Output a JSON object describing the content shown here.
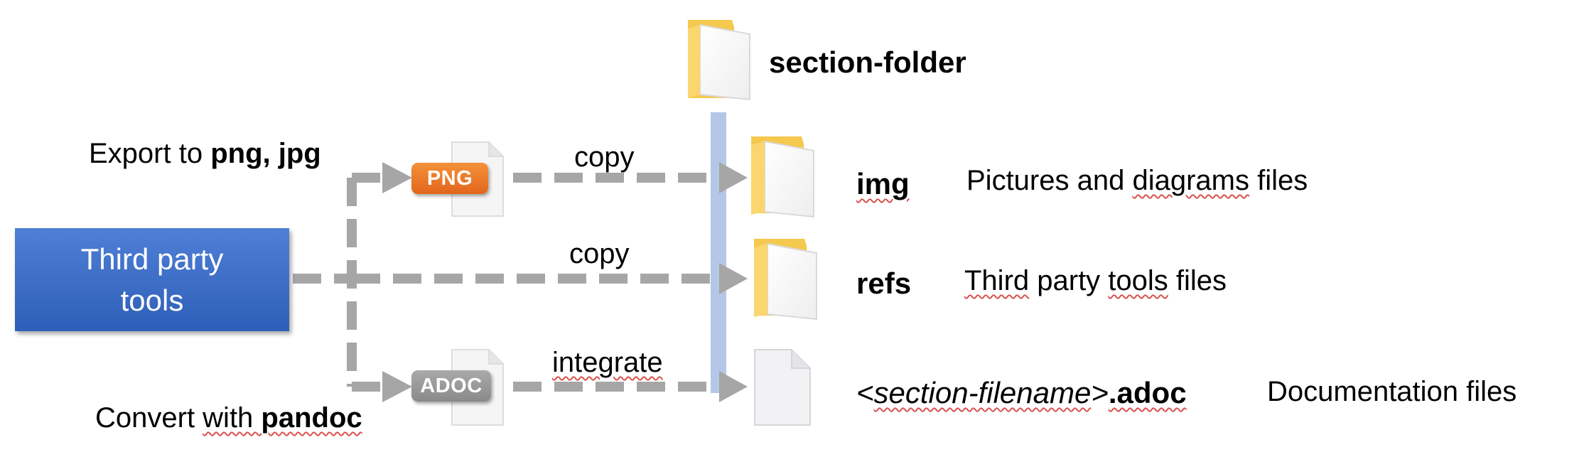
{
  "colors": {
    "arrow": "#a6a6a6",
    "third_party_box": "#3b6cc7",
    "png_badge": "#ee7b2c",
    "adoc_badge": "#9a9a9a",
    "folder": "#fbd66f",
    "vertical_bar": "#b4c7e7"
  },
  "section_folder": {
    "icon": "folder-icon",
    "label": "section-folder"
  },
  "source": {
    "label": "Third party tools"
  },
  "export": {
    "prefix": "Export to ",
    "formats": "png, jpg"
  },
  "convert": {
    "prefix": "Convert ",
    "with": "with ",
    "tool": "pandoc"
  },
  "badges": {
    "png": "PNG",
    "adoc": "ADOC"
  },
  "arrows": {
    "copy_img": "copy",
    "copy_refs": "copy",
    "integrate": "integrate"
  },
  "targets": [
    {
      "name": "img",
      "icon": "folder-icon",
      "description_parts": [
        "Pictures and ",
        "diagrams",
        " files"
      ]
    },
    {
      "name": "refs",
      "icon": "folder-icon",
      "description_parts": [
        "Third",
        " party ",
        "tools",
        " files"
      ]
    },
    {
      "name_open": "<",
      "name_var": "section-filename",
      "name_close": ">",
      "name_ext": ".adoc",
      "icon": "document-icon",
      "description": "Documentation files"
    }
  ]
}
